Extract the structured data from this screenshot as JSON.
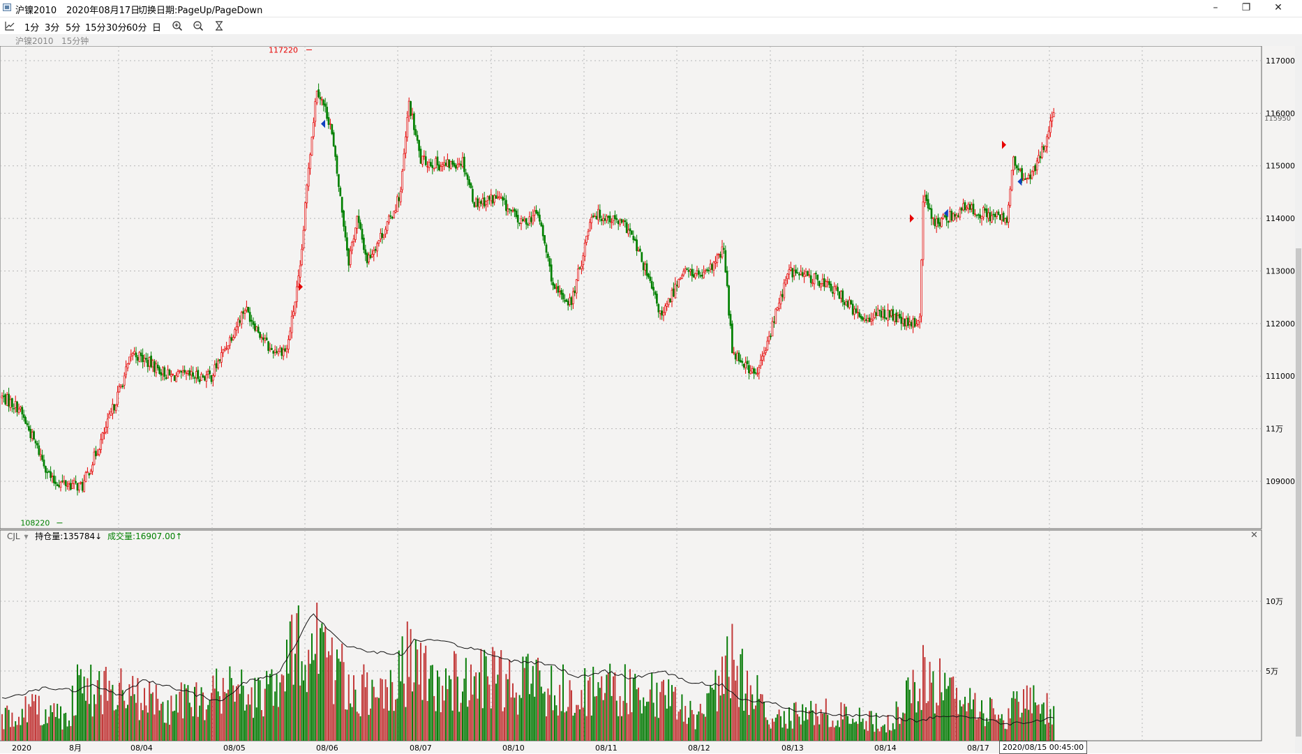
{
  "window": {
    "title_symbol": "沪镍2010",
    "title_date": "2020年08月17日",
    "title_hint": "切换日期:PageUp/PageDown",
    "minimize_glyph": "–",
    "restore_glyph": "❐",
    "close_glyph": "✕"
  },
  "toolbar": {
    "items": [
      "1分",
      "3分",
      "5分",
      "15分",
      "30分",
      "60分",
      "日"
    ],
    "icons": [
      "line-chart-icon",
      "zoom-in-icon",
      "zoom-out-icon",
      "hourglass-icon"
    ]
  },
  "subbar": {
    "symbol": "沪镍2010",
    "period": "15分钟"
  },
  "price_panel": {
    "y_ticks": [
      "117000",
      "116000",
      "115000",
      "114000",
      "113000",
      "112000",
      "111000",
      "11万",
      "109000"
    ],
    "last_price": "115950",
    "high_label": "117220",
    "low_label": "108220"
  },
  "volume_panel": {
    "indicator": "CJL",
    "dropdown_glyph": "▾",
    "oi_text": "持仓量:135784↓",
    "vol_text": "成交量:16907.00↑",
    "y_ticks": [
      "10万",
      "5万"
    ],
    "close_glyph": "✕"
  },
  "x_axis": {
    "labels": [
      "2020",
      "8月",
      "08/04",
      "08/05",
      "08/06",
      "08/07",
      "08/10",
      "08/11",
      "08/12",
      "08/13",
      "08/14",
      "08/17"
    ],
    "cursor_time": "2020/08/15 00:45:00"
  },
  "colors": {
    "up": "#e60000",
    "down": "#008000",
    "grid": "#b5b5b5",
    "volume_up": "#c23a3a",
    "volume_down": "#0a7d0a"
  },
  "chart_data": {
    "type": "candlestick",
    "symbol": "沪镍2010",
    "period": "15分钟",
    "ylim": [
      108000,
      117300
    ],
    "anchors": [
      [
        0,
        110600
      ],
      [
        10,
        110400
      ],
      [
        30,
        109000
      ],
      [
        48,
        108900
      ],
      [
        62,
        110000
      ],
      [
        78,
        111450
      ],
      [
        100,
        111000
      ],
      [
        125,
        111000
      ],
      [
        145,
        112300
      ],
      [
        160,
        111500
      ],
      [
        170,
        111500
      ],
      [
        178,
        113000
      ],
      [
        183,
        115000
      ],
      [
        188,
        116500
      ],
      [
        196,
        115800
      ],
      [
        207,
        113200
      ],
      [
        212,
        114000
      ],
      [
        218,
        113200
      ],
      [
        232,
        114000
      ],
      [
        238,
        114500
      ],
      [
        243,
        116200
      ],
      [
        250,
        115100
      ],
      [
        265,
        115000
      ],
      [
        275,
        115100
      ],
      [
        282,
        114300
      ],
      [
        296,
        114400
      ],
      [
        310,
        113900
      ],
      [
        320,
        114100
      ],
      [
        330,
        112600
      ],
      [
        340,
        112400
      ],
      [
        346,
        113200
      ],
      [
        352,
        114100
      ],
      [
        364,
        114000
      ],
      [
        374,
        113800
      ],
      [
        382,
        113200
      ],
      [
        394,
        112100
      ],
      [
        406,
        113000
      ],
      [
        420,
        112900
      ],
      [
        431,
        113400
      ],
      [
        436,
        111500
      ],
      [
        450,
        111000
      ],
      [
        456,
        111500
      ],
      [
        462,
        112200
      ],
      [
        470,
        113000
      ],
      [
        490,
        112800
      ],
      [
        502,
        112500
      ],
      [
        512,
        112100
      ],
      [
        528,
        112200
      ],
      [
        542,
        111950
      ],
      [
        548,
        112100
      ],
      [
        550,
        114400
      ],
      [
        558,
        113900
      ],
      [
        575,
        114200
      ],
      [
        586,
        114100
      ],
      [
        596,
        114000
      ],
      [
        600,
        114000
      ],
      [
        604,
        115100
      ],
      [
        610,
        114700
      ],
      [
        618,
        115000
      ],
      [
        628,
        115950
      ]
    ],
    "volume_anchors": [
      [
        0,
        20000
      ],
      [
        20,
        30000
      ],
      [
        40,
        20000
      ],
      [
        44,
        50000
      ],
      [
        78,
        40000
      ],
      [
        100,
        30000
      ],
      [
        130,
        45000
      ],
      [
        160,
        40000
      ],
      [
        180,
        90000
      ],
      [
        185,
        100000
      ],
      [
        192,
        80000
      ],
      [
        205,
        55000
      ],
      [
        230,
        35000
      ],
      [
        242,
        70000
      ],
      [
        260,
        50000
      ],
      [
        290,
        55000
      ],
      [
        325,
        50000
      ],
      [
        340,
        45000
      ],
      [
        372,
        45000
      ],
      [
        400,
        35000
      ],
      [
        415,
        20000
      ],
      [
        436,
        70000
      ],
      [
        460,
        20000
      ],
      [
        490,
        25000
      ],
      [
        530,
        15000
      ],
      [
        550,
        55000
      ],
      [
        600,
        20000
      ],
      [
        610,
        45000
      ],
      [
        620,
        25000
      ],
      [
        628,
        30000
      ]
    ],
    "open_interest_anchors": [
      [
        0,
        30000
      ],
      [
        25,
        38000
      ],
      [
        45,
        36000
      ],
      [
        55,
        40000
      ],
      [
        70,
        32000
      ],
      [
        85,
        44000
      ],
      [
        110,
        35000
      ],
      [
        130,
        28000
      ],
      [
        145,
        42000
      ],
      [
        165,
        48000
      ],
      [
        178,
        75000
      ],
      [
        185,
        92000
      ],
      [
        195,
        80000
      ],
      [
        205,
        68000
      ],
      [
        225,
        63000
      ],
      [
        240,
        62000
      ],
      [
        245,
        72000
      ],
      [
        262,
        71000
      ],
      [
        285,
        65000
      ],
      [
        300,
        58000
      ],
      [
        320,
        56000
      ],
      [
        332,
        53000
      ],
      [
        342,
        45000
      ],
      [
        360,
        50000
      ],
      [
        375,
        45000
      ],
      [
        395,
        50000
      ],
      [
        410,
        42000
      ],
      [
        430,
        40000
      ],
      [
        440,
        30000
      ],
      [
        460,
        27000
      ],
      [
        475,
        21000
      ],
      [
        490,
        20000
      ],
      [
        510,
        18000
      ],
      [
        530,
        17000
      ],
      [
        548,
        14000
      ],
      [
        560,
        18000
      ],
      [
        580,
        17000
      ],
      [
        600,
        12000
      ],
      [
        615,
        14000
      ],
      [
        628,
        16907
      ]
    ],
    "signals": [
      {
        "type": "buy",
        "bar": 180,
        "price": 112700
      },
      {
        "type": "sell",
        "bar": 190,
        "price": 115800
      },
      {
        "type": "buy",
        "bar": 545,
        "price": 114000
      },
      {
        "type": "sell",
        "bar": 562,
        "price": 114100
      },
      {
        "type": "buy",
        "bar": 600,
        "price": 115400
      },
      {
        "type": "sell",
        "bar": 606,
        "price": 114700
      }
    ]
  }
}
